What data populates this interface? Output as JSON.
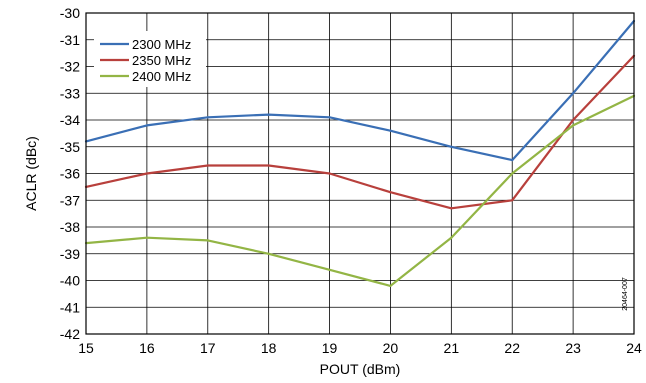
{
  "chart_data": {
    "type": "line",
    "xlabel": "POUT (dBm)",
    "ylabel": "ACLR (dBc)",
    "x": [
      15,
      16,
      17,
      18,
      19,
      20,
      21,
      22,
      23,
      24
    ],
    "xlim": [
      15,
      24
    ],
    "ylim": [
      -42,
      -30
    ],
    "xticks": [
      "15",
      "16",
      "17",
      "18",
      "19",
      "20",
      "21",
      "22",
      "23",
      "24"
    ],
    "yticks": [
      "-30",
      "-31",
      "-32",
      "-33",
      "-34",
      "-35",
      "-36",
      "-37",
      "-38",
      "-39",
      "-40",
      "-41",
      "-42"
    ],
    "grid": true,
    "legend_position": "top-left",
    "figure_id": "20464-007",
    "series": [
      {
        "name": "2300 MHz",
        "color": "#3a6fb5",
        "values": [
          -34.8,
          -34.2,
          -33.9,
          -33.8,
          -33.9,
          -34.4,
          -35.0,
          -35.5,
          -33.0,
          -30.3
        ]
      },
      {
        "name": "2350 MHz",
        "color": "#b8403c",
        "values": [
          -36.5,
          -36.0,
          -35.7,
          -35.7,
          -36.0,
          -36.7,
          -37.3,
          -37.0,
          -34.0,
          -31.6
        ]
      },
      {
        "name": "2400 MHz",
        "color": "#93b545",
        "values": [
          -38.6,
          -38.4,
          -38.5,
          -39.0,
          -39.6,
          -40.2,
          -38.4,
          -36.0,
          -34.2,
          -33.1
        ]
      }
    ]
  }
}
